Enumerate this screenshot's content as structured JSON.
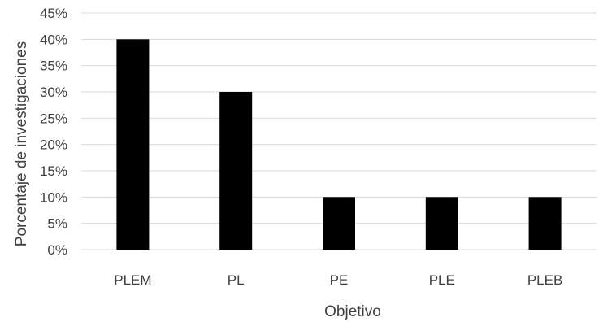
{
  "chart_data": {
    "type": "bar",
    "title": "",
    "xlabel": "Objetivo",
    "ylabel": "Porcentaje de investigaciones",
    "categories": [
      "PLEM",
      "PL",
      "PE",
      "PLE",
      "PLEB"
    ],
    "values": [
      40,
      30,
      10,
      10,
      10
    ],
    "ylim": [
      0,
      45
    ],
    "y_ticks": [
      "0%",
      "5%",
      "10%",
      "15%",
      "20%",
      "25%",
      "30%",
      "35%",
      "40%",
      "45%"
    ],
    "grid": true,
    "legend": "none",
    "colors": {
      "bar": "#000000",
      "grid": "#d9d9d9",
      "text": "#404040"
    }
  }
}
